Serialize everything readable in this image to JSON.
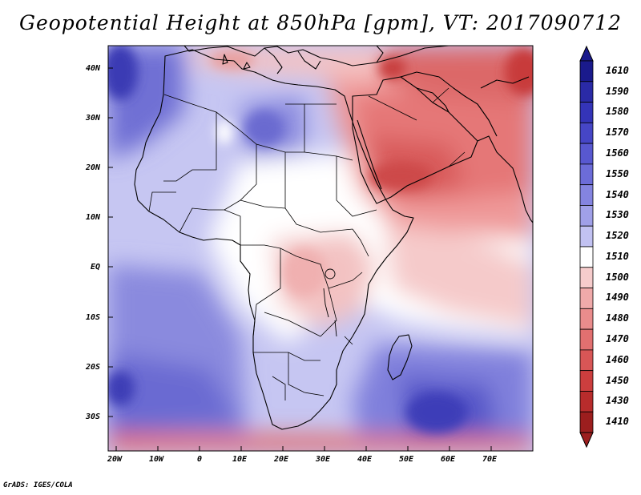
{
  "title": "Geopotential Height at 850hPa [gpm], VT: 2017090712",
  "credit": "GrADS: IGES/COLA",
  "map": {
    "variable": "Geopotential Height",
    "level": "850hPa",
    "units": "gpm",
    "valid_time": "2017090712",
    "lat_labels": [
      "40N",
      "30N",
      "20N",
      "10N",
      "EQ",
      "10S",
      "20S",
      "30S"
    ],
    "lon_labels": [
      "20W",
      "10W",
      "0",
      "10E",
      "20E",
      "30E",
      "40E",
      "50E",
      "60E",
      "70E"
    ]
  },
  "colorbar": {
    "levels": [
      "1610",
      "1590",
      "1580",
      "1570",
      "1560",
      "1550",
      "1540",
      "1530",
      "1520",
      "1510",
      "1500",
      "1490",
      "1480",
      "1470",
      "1460",
      "1450",
      "1430",
      "1410"
    ],
    "colors": [
      "#1a1a8c",
      "#2a2aa6",
      "#3434b8",
      "#4646c6",
      "#5858d0",
      "#6c6cd8",
      "#8484e0",
      "#a0a0e8",
      "#c2c2f2",
      "#ffffff",
      "#f6cccc",
      "#f0aaaa",
      "#ea8c8c",
      "#e27070",
      "#d85656",
      "#cc3e3e",
      "#b82c2c",
      "#9c1e1e"
    ]
  }
}
